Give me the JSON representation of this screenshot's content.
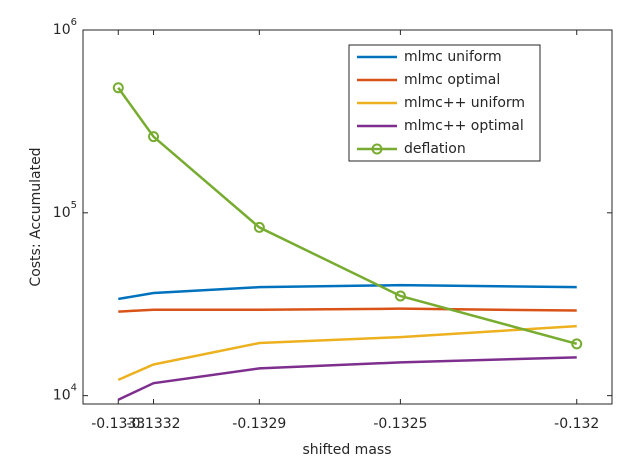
{
  "chart_data": {
    "type": "line",
    "xlabel": "shifted mass",
    "ylabel": "Costs: Accumulated",
    "x": [
      -0.1333,
      -0.1332,
      -0.1329,
      -0.1325,
      -0.132
    ],
    "series": [
      {
        "name": "mlmc uniform",
        "color": "#0072BD",
        "values": [
          33800,
          36400,
          39200,
          40200,
          39200
        ]
      },
      {
        "name": "mlmc optimal",
        "color": "#D95319",
        "values": [
          28800,
          29500,
          29500,
          29900,
          29200
        ]
      },
      {
        "name": "mlmc++ uniform",
        "color": "#EDB120",
        "values": [
          12200,
          14800,
          19400,
          20900,
          24000
        ]
      },
      {
        "name": "mlmc++ optimal",
        "color": "#7E2F8E",
        "values": [
          9500,
          11700,
          14100,
          15200,
          16200
        ]
      },
      {
        "name": "deflation",
        "color": "#77AC30",
        "values": [
          483000,
          261000,
          83200,
          35100,
          19200
        ],
        "marker": "circle"
      }
    ],
    "xlim": [
      -0.1334,
      -0.1319
    ],
    "xticks": [
      -0.1333,
      -0.1332,
      -0.1329,
      -0.1325,
      -0.132
    ],
    "ylim": [
      9000,
      1000000
    ],
    "ylog": true,
    "yticks": [
      {
        "value": 10000,
        "label": "10^4"
      },
      {
        "value": 100000,
        "label": "10^5"
      },
      {
        "value": 1000000,
        "label": "10^6"
      }
    ],
    "legend": "northeast"
  }
}
